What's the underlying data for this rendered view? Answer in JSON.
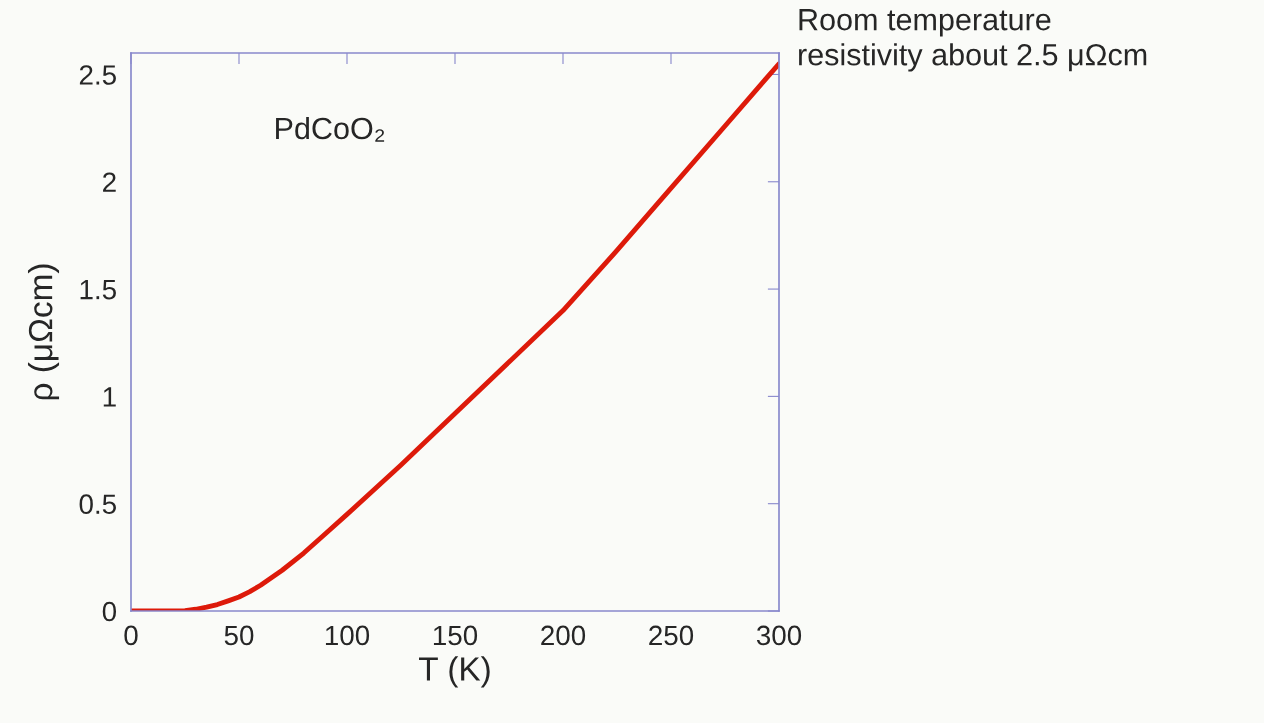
{
  "chart_data": {
    "type": "line",
    "x": [
      0,
      10,
      20,
      25,
      30,
      35,
      40,
      45,
      50,
      55,
      60,
      70,
      80,
      90,
      100,
      125,
      150,
      175,
      200,
      225,
      250,
      275,
      300
    ],
    "series": [
      {
        "color": "#dd1a0a",
        "values": [
          0,
          0,
          0,
          0.002,
          0.008,
          0.018,
          0.03,
          0.047,
          0.065,
          0.09,
          0.12,
          0.19,
          0.27,
          0.36,
          0.45,
          0.68,
          0.92,
          1.16,
          1.4,
          1.68,
          1.97,
          2.26,
          2.55
        ]
      }
    ],
    "xlabel": "T (K)",
    "ylabel": "ρ (μΩcm)",
    "xlim": [
      0,
      300
    ],
    "ylim": [
      0,
      2.6
    ],
    "xticks": [
      0,
      50,
      100,
      150,
      200,
      250,
      300
    ],
    "yticks": [
      0,
      0.5,
      1,
      1.5,
      2,
      2.5
    ],
    "annotations": [
      "PdCoO₂",
      "Room temperature\nresistivity about 2.5 μΩcm"
    ],
    "grid": false,
    "legend": false
  }
}
